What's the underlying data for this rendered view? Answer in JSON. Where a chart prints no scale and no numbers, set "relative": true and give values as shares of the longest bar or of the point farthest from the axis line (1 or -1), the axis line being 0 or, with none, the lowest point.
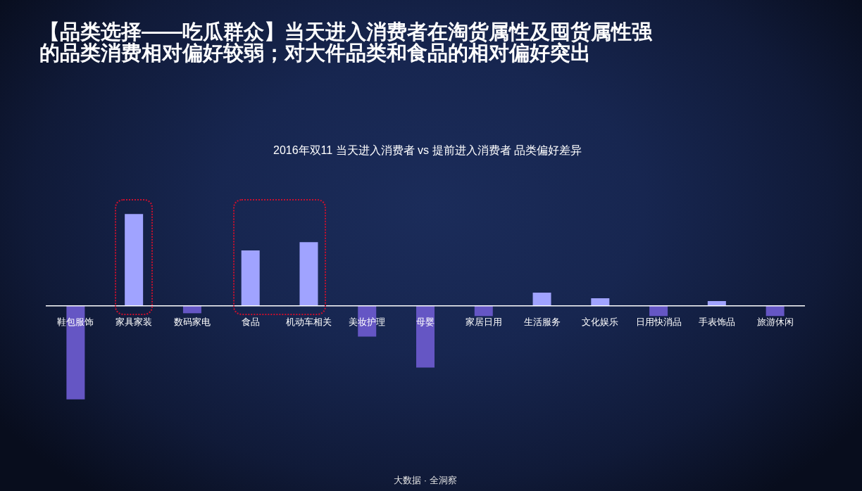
{
  "chart_data": {
    "type": "bar",
    "title": "【品类选择——吃瓜群众】当天进入消费者在淘货属性及囤货属性强的品类消费相对偏好较弱；对大件品类和食品的相对偏好突出",
    "subtitle": "2016年双11 当天进入消费者 vs 提前进入消费者 品类偏好差异",
    "annotations": [
      "大数据 · 全洞察"
    ],
    "categories": [
      "鞋包服饰",
      "家具家装",
      "数码家电",
      "食品",
      "机动车相关",
      "美妆护理",
      "母婴",
      "家居日用",
      "生活服务",
      "文化娱乐",
      "日用快消品",
      "手表饰品",
      "旅游休闲"
    ],
    "values": [
      -1,
      0.98,
      -0.08,
      0.59,
      0.68,
      -0.33,
      -0.66,
      -0.11,
      0.14,
      0.08,
      -0.11,
      0.05,
      -0.11
    ],
    "colors": [
      "#6556c4",
      "#a0a3ff",
      "#6556c4",
      "#a0a3ff",
      "#a0a3ff",
      "#6556c4",
      "#6556c4",
      "#6556c4",
      "#a0a3ff",
      "#a0a3ff",
      "#6556c4",
      "#a0a3ff",
      "#6556c4"
    ],
    "relative": true
  }
}
